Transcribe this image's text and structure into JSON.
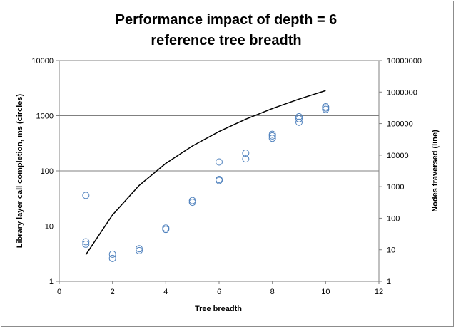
{
  "chart_data": {
    "type": "scatter",
    "title_lines": [
      "Performance impact of depth = 6",
      "reference tree breadth"
    ],
    "xlabel": "Tree breadth",
    "ylabel": "Library layer call completion, ms (circles)",
    "y2label": "Nodes traversed (line)",
    "xlim": [
      0,
      12
    ],
    "ylim": [
      1,
      10000
    ],
    "y2lim": [
      1,
      10000000
    ],
    "y_scale": "log",
    "y2_scale": "log",
    "x_ticks": [
      "0",
      "2",
      "4",
      "6",
      "8",
      "10",
      "12"
    ],
    "y_ticks": [
      "1",
      "10",
      "100",
      "1000",
      "10000"
    ],
    "y2_ticks": [
      "1",
      "10",
      "100",
      "1000",
      "10000",
      "100000",
      "1000000",
      "10000000"
    ],
    "grid": "horizontal major lines",
    "legend": "none",
    "marker_color": "#4f81bd",
    "line_color": "#000000",
    "circles": [
      {
        "x": 1,
        "y": 36
      },
      {
        "x": 1,
        "y": 5.2
      },
      {
        "x": 1,
        "y": 4.7
      },
      {
        "x": 2,
        "y": 3.1
      },
      {
        "x": 2,
        "y": 2.6
      },
      {
        "x": 3,
        "y": 3.9
      },
      {
        "x": 3,
        "y": 3.6
      },
      {
        "x": 4,
        "y": 9.2
      },
      {
        "x": 4,
        "y": 8.7
      },
      {
        "x": 5,
        "y": 29
      },
      {
        "x": 5,
        "y": 27
      },
      {
        "x": 6,
        "y": 145
      },
      {
        "x": 6,
        "y": 70
      },
      {
        "x": 6,
        "y": 67
      },
      {
        "x": 7,
        "y": 210
      },
      {
        "x": 7,
        "y": 165
      },
      {
        "x": 8,
        "y": 460
      },
      {
        "x": 8,
        "y": 430
      },
      {
        "x": 8,
        "y": 390
      },
      {
        "x": 9,
        "y": 960
      },
      {
        "x": 9,
        "y": 880
      },
      {
        "x": 9,
        "y": 760
      },
      {
        "x": 10,
        "y": 1450
      },
      {
        "x": 10,
        "y": 1380
      },
      {
        "x": 10,
        "y": 1300
      }
    ],
    "line": [
      {
        "x": 1,
        "y2": 7
      },
      {
        "x": 2,
        "y2": 127
      },
      {
        "x": 3,
        "y2": 1093
      },
      {
        "x": 4,
        "y2": 5461
      },
      {
        "x": 5,
        "y2": 19531
      },
      {
        "x": 6,
        "y2": 55987
      },
      {
        "x": 7,
        "y2": 137257
      },
      {
        "x": 8,
        "y2": 299593
      },
      {
        "x": 9,
        "y2": 597871
      },
      {
        "x": 10,
        "y2": 1111111
      }
    ]
  }
}
